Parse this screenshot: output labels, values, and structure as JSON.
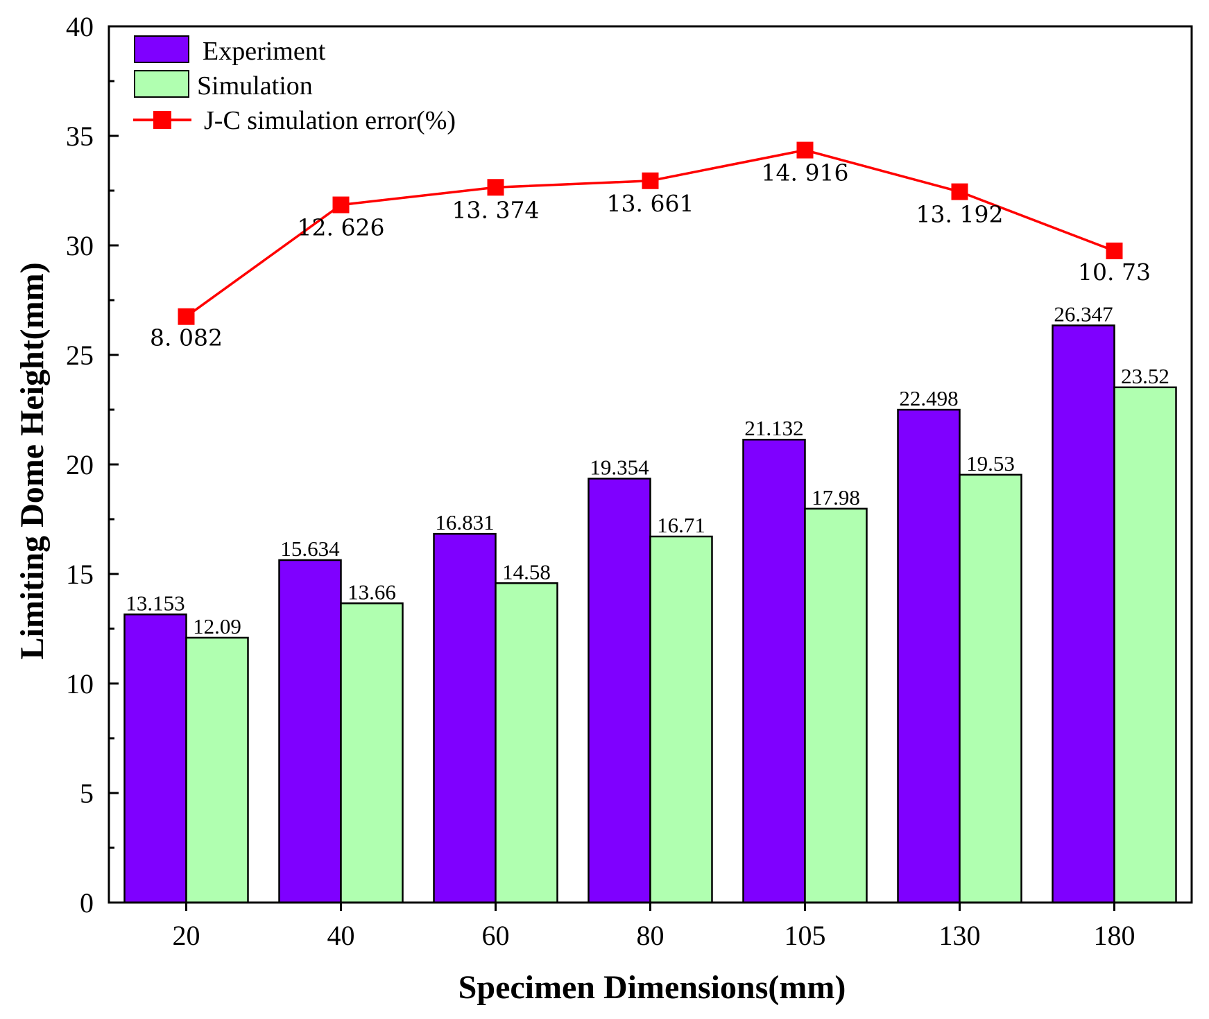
{
  "chart_data": {
    "type": "bar",
    "title": "",
    "xlabel": "Specimen Dimensions(mm)",
    "ylabel": "Limiting Dome Height(mm)",
    "ylim": [
      0,
      40
    ],
    "yticks": [
      0,
      5,
      10,
      15,
      20,
      25,
      30,
      35,
      40
    ],
    "categories": [
      "20",
      "40",
      "60",
      "80",
      "105",
      "130",
      "180"
    ],
    "series": [
      {
        "name": "Experiment",
        "kind": "bar",
        "color": "#7F00FF",
        "values": [
          13.153,
          15.634,
          16.831,
          19.354,
          21.132,
          22.498,
          26.347
        ],
        "labels": [
          "13.153",
          "15.634",
          "16.831",
          "19.354",
          "21.132",
          "22.498",
          "26.347"
        ]
      },
      {
        "name": "Simulation",
        "kind": "bar",
        "color": "#B0FFB0",
        "values": [
          12.09,
          13.66,
          14.58,
          16.71,
          17.98,
          19.53,
          23.52
        ],
        "labels": [
          "12.09",
          "13.66",
          "14.58",
          "16.71",
          "17.98",
          "19.53",
          "23.52"
        ]
      },
      {
        "name": "J-C simulation error(%)",
        "kind": "line",
        "color": "#FF0000",
        "plot_y": [
          26.75,
          31.85,
          32.65,
          32.95,
          34.35,
          32.45,
          29.75
        ],
        "values": [
          8.082,
          12.626,
          13.374,
          13.661,
          14.916,
          13.192,
          10.73
        ],
        "labels": [
          "8. 082",
          "12. 626",
          "13. 374",
          "13. 661",
          "14. 916",
          "13. 192",
          "10. 73"
        ]
      }
    ],
    "legend": {
      "position": "top-left",
      "entries": [
        "Experiment",
        "Simulation",
        "J-C simulation error(%)"
      ]
    },
    "grid": false
  }
}
